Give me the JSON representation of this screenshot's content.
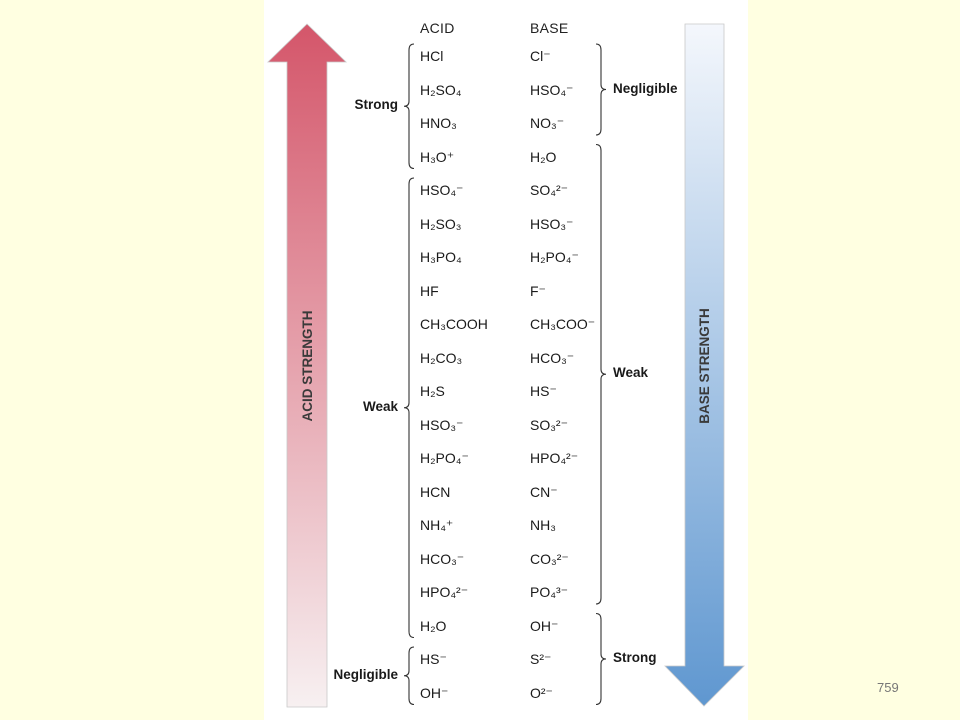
{
  "page_number": "759",
  "headers": {
    "acid": "ACID",
    "base": "BASE"
  },
  "arrows": {
    "acid_label": "ACID STRENGTH",
    "base_label": "BASE STRENGTH",
    "acid_color_top": "#d4566a",
    "acid_color_bottom": "#f7f0f1",
    "base_color_top": "#f4f7fc",
    "base_color_bottom": "#5f97d0"
  },
  "pairs": [
    {
      "acid": "HCl",
      "base": "Cl⁻"
    },
    {
      "acid": "H₂SO₄",
      "base": "HSO₄⁻"
    },
    {
      "acid": "HNO₃",
      "base": "NO₃⁻"
    },
    {
      "acid": "H₃O⁺",
      "base": "H₂O"
    },
    {
      "acid": "HSO₄⁻",
      "base": "SO₄²⁻"
    },
    {
      "acid": "H₂SO₃",
      "base": "HSO₃⁻"
    },
    {
      "acid": "H₃PO₄",
      "base": "H₂PO₄⁻"
    },
    {
      "acid": "HF",
      "base": "F⁻"
    },
    {
      "acid": "CH₃COOH",
      "base": "CH₃COO⁻"
    },
    {
      "acid": "H₂CO₃",
      "base": "HCO₃⁻"
    },
    {
      "acid": "H₂S",
      "base": "HS⁻"
    },
    {
      "acid": "HSO₃⁻",
      "base": "SO₃²⁻"
    },
    {
      "acid": "H₂PO₄⁻",
      "base": "HPO₄²⁻"
    },
    {
      "acid": "HCN",
      "base": "CN⁻"
    },
    {
      "acid": "NH₄⁺",
      "base": "NH₃"
    },
    {
      "acid": "HCO₃⁻",
      "base": "CO₃²⁻"
    },
    {
      "acid": "HPO₄²⁻",
      "base": "PO₄³⁻"
    },
    {
      "acid": "H₂O",
      "base": "OH⁻"
    },
    {
      "acid": "HS⁻",
      "base": "S²⁻"
    },
    {
      "acid": "OH⁻",
      "base": "O²⁻"
    }
  ],
  "acid_groups": [
    {
      "label": "Strong",
      "from": 0,
      "to": 3
    },
    {
      "label": "Weak",
      "from": 4,
      "to": 17
    },
    {
      "label": "Negligible",
      "from": 18,
      "to": 19
    }
  ],
  "base_groups": [
    {
      "label": "Negligible",
      "from": 0,
      "to": 2
    },
    {
      "label": "Weak",
      "from": 3,
      "to": 16
    },
    {
      "label": "Strong",
      "from": 17,
      "to": 19
    }
  ]
}
